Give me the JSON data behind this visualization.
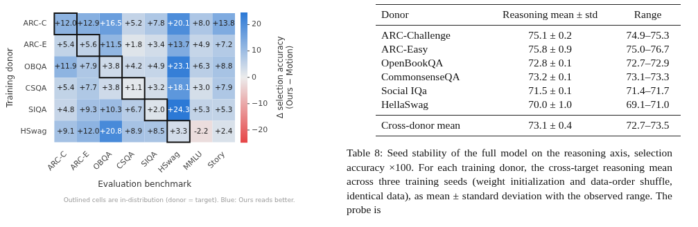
{
  "chart_data": [
    {
      "type": "heatmap",
      "xlabel": "Evaluation benchmark",
      "ylabel": "Training donor",
      "clabel": "Δ selection accuracy\n(Ours − Motion)",
      "categories": [
        "ARC-C",
        "ARC-E",
        "OBQA",
        "CSQA",
        "SIQA",
        "HSwag",
        "MMLU",
        "Story"
      ],
      "y_categories": [
        "ARC-C",
        "ARC-E",
        "OBQA",
        "CSQA",
        "SIQA",
        "HSwag"
      ],
      "cells": [
        [
          12.0,
          12.9,
          16.5,
          5.2,
          7.8,
          20.1,
          8.0,
          13.8
        ],
        [
          5.4,
          5.6,
          11.5,
          1.8,
          3.4,
          13.7,
          4.9,
          7.2
        ],
        [
          11.9,
          7.9,
          3.8,
          4.2,
          4.9,
          23.1,
          6.3,
          8.8
        ],
        [
          5.4,
          7.7,
          3.8,
          1.1,
          3.2,
          18.1,
          3.0,
          7.9
        ],
        [
          4.8,
          9.3,
          10.3,
          6.7,
          2.0,
          24.3,
          5.3,
          5.3
        ],
        [
          9.1,
          12.0,
          20.8,
          8.9,
          8.5,
          3.3,
          -2.2,
          2.4
        ]
      ],
      "cell_labels": [
        [
          "+12.0",
          "+12.9",
          "+16.5",
          "+5.2",
          "+7.8",
          "+20.1",
          "+8.0",
          "+13.8"
        ],
        [
          "+5.4",
          "+5.6",
          "+11.5",
          "+1.8",
          "+3.4",
          "+13.7",
          "+4.9",
          "+7.2"
        ],
        [
          "+11.9",
          "+7.9",
          "+3.8",
          "+4.2",
          "+4.9",
          "+23.1",
          "+6.3",
          "+8.8"
        ],
        [
          "+5.4",
          "+7.7",
          "+3.8",
          "+1.1",
          "+3.2",
          "+18.1",
          "+3.0",
          "+7.9"
        ],
        [
          "+4.8",
          "+9.3",
          "+10.3",
          "+6.7",
          "+2.0",
          "+24.3",
          "+5.3",
          "+5.3"
        ],
        [
          "+9.1",
          "+12.0",
          "+20.8",
          "+8.9",
          "+8.5",
          "+3.3",
          "-2.2",
          "+2.4"
        ]
      ],
      "clim": [
        -24.6,
        24.6
      ],
      "cticks": [
        {
          "value": -20,
          "label": "−20"
        },
        {
          "value": -10,
          "label": "−10"
        },
        0,
        10,
        20
      ],
      "annotations": [
        "Outlined cells are in-distribution (donor = target). Blue: Ours reads better."
      ]
    },
    {
      "type": "other",
      "annotations": [
        "Donor",
        "Reasoning mean ± std",
        "Range",
        "ARC-Challenge",
        "75.1 ± 0.2",
        "74.9–75.3",
        "ARC-Easy",
        "75.8 ± 0.9",
        "75.0–76.7",
        "OpenBookQA",
        "72.8 ± 0.1",
        "72.7–72.9",
        "CommonsenseQA",
        "73.2 ± 0.1",
        "73.1–73.3",
        "Social IQa",
        "71.5 ± 0.1",
        "71.4–71.7",
        "HellaSwag",
        "70.0 ± 1.0",
        "69.1–71.0",
        "Cross-donor mean",
        "73.1 ± 0.4",
        "72.7–73.5",
        "Table 8: Seed stability of the full model on the reasoning axis, selection accuracy ×100. For each training donor, the cross-target reasoning mean across three training seeds (weight initialization and data-order shuffle, identical data), as mean ± standard deviation with the observed range. The probe is"
      ]
    }
  ]
}
